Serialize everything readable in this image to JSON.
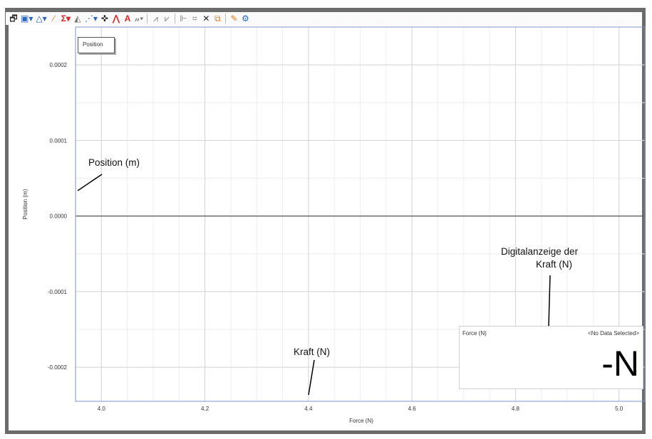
{
  "toolbar": {
    "buttons": [
      {
        "name": "edit-graph",
        "glyph": "🗗"
      },
      {
        "name": "graph-layout",
        "glyph": "▣▾"
      },
      {
        "name": "curve-fit",
        "glyph": "△▾"
      },
      {
        "name": "tangent",
        "glyph": "⁄"
      },
      {
        "name": "statistics",
        "glyph": "Σ▾"
      },
      {
        "name": "area",
        "glyph": "◭"
      },
      {
        "name": "scatter",
        "glyph": "⋰▾"
      },
      {
        "name": "crosshair",
        "glyph": "✜"
      },
      {
        "name": "slope",
        "glyph": "⋀"
      },
      {
        "name": "text",
        "glyph": "A"
      },
      {
        "name": "annotate",
        "glyph": "𝓃▾"
      },
      {
        "name": "zoom-in",
        "glyph": "⩘"
      },
      {
        "name": "zoom-out",
        "glyph": "⩗"
      },
      {
        "name": "select-range",
        "glyph": "⊩"
      },
      {
        "name": "strikethrough",
        "glyph": "⌗"
      },
      {
        "name": "delete",
        "glyph": "✕"
      },
      {
        "name": "copy",
        "glyph": "⧉"
      },
      {
        "name": "highlight",
        "glyph": "✎"
      },
      {
        "name": "settings",
        "glyph": "⚙"
      }
    ]
  },
  "graph": {
    "legend": "Position",
    "ylabel": "Position (m)",
    "xlabel": "Force (N)",
    "x_ticks": [
      {
        "value": 4.0,
        "label": "4.0"
      },
      {
        "value": 4.2,
        "label": "4.2"
      },
      {
        "value": 4.4,
        "label": "4.4"
      },
      {
        "value": 4.6,
        "label": "4.6"
      },
      {
        "value": 4.8,
        "label": "4.8"
      },
      {
        "value": 5.0,
        "label": "5.0"
      }
    ],
    "y_ticks": [
      {
        "value": 0.0002,
        "label": "0.0002"
      },
      {
        "value": 0.0001,
        "label": "0.0001"
      },
      {
        "value": 0.0,
        "label": "0.0000"
      },
      {
        "value": -0.0001,
        "label": "-0.0001"
      },
      {
        "value": -0.0002,
        "label": "-0.0002"
      }
    ],
    "xlim": [
      3.95,
      5.05
    ],
    "ylim": [
      -0.000245,
      0.00025
    ],
    "grid": true
  },
  "annotations": {
    "position": "Position (m)",
    "kraft": "Kraft (N)",
    "digital_line1": "Digitalanzeige der",
    "digital_line2": "Kraft (N)"
  },
  "meter": {
    "label": "Force (N)",
    "status": "<No Data Selected>",
    "value": "-N"
  },
  "colors": {
    "frame": "#6b6b6b",
    "plot_border": "#7f95c4",
    "grid_major": "#d4d4d4",
    "grid_minor": "#eeeeee",
    "zero_line": "#555555"
  }
}
